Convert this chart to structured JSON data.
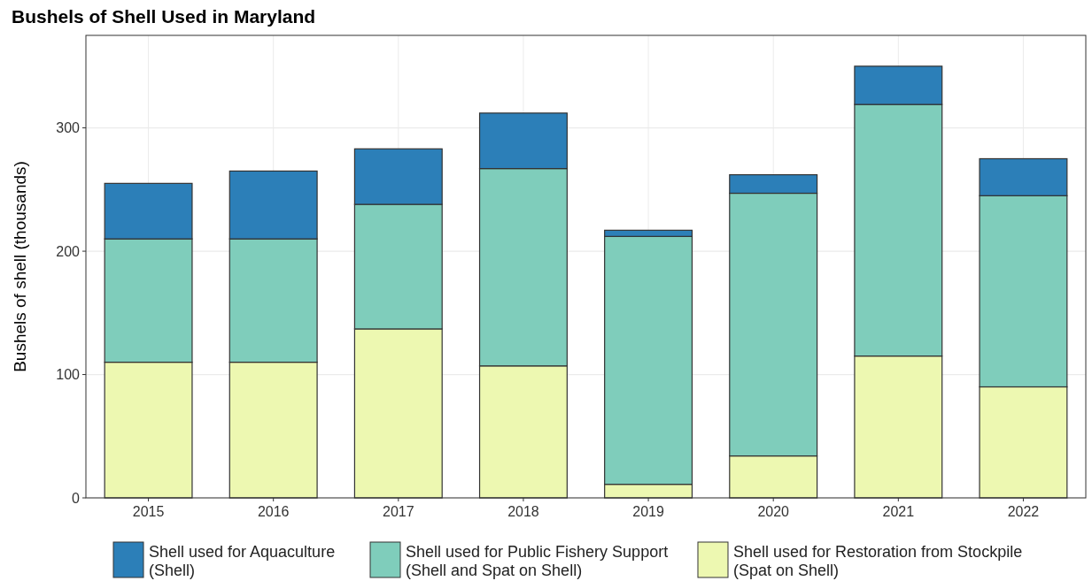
{
  "chart_data": {
    "type": "bar",
    "title": "Bushels of Shell Used in Maryland",
    "ylabel": "Bushels of shell (thousands)",
    "categories": [
      "2015",
      "2016",
      "2017",
      "2018",
      "2019",
      "2020",
      "2021",
      "2022"
    ],
    "stacked": true,
    "ylim": [
      0,
      375
    ],
    "yticks": [
      0,
      100,
      200,
      300
    ],
    "grid": true,
    "legend": "bottom",
    "series": [
      {
        "name": "Shell used for Restoration from Stockpile\n(Spat on Shell)",
        "color": "#edf8b1",
        "values": [
          110,
          110,
          137,
          107,
          11,
          34,
          115,
          90
        ]
      },
      {
        "name": "Shell used for Public Fishery Support\n(Shell and Spat on Shell)",
        "color": "#7fcdbb",
        "values": [
          100,
          100,
          101,
          160,
          201,
          213,
          204,
          155
        ]
      },
      {
        "name": "Shell used for Aquaculture\n(Shell)",
        "color": "#2c7fb8",
        "values": [
          45,
          55,
          45,
          45,
          5,
          15,
          31,
          30
        ]
      }
    ]
  }
}
